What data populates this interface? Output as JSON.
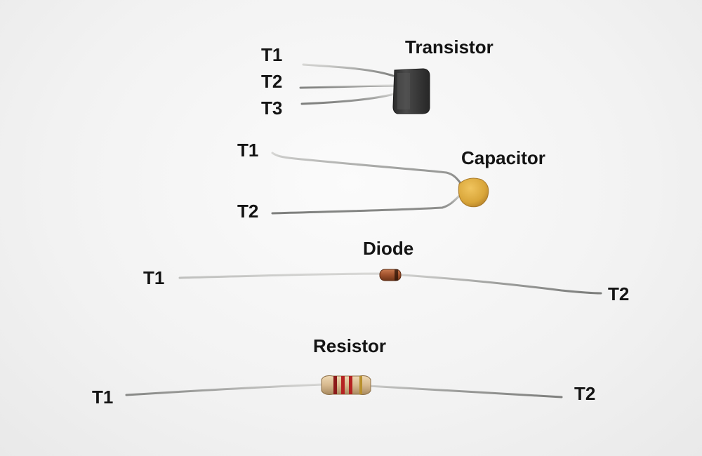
{
  "components": {
    "transistor": {
      "name": "Transistor",
      "terminals": [
        "T1",
        "T2",
        "T3"
      ]
    },
    "capacitor": {
      "name": "Capacitor",
      "terminals": [
        "T1",
        "T2"
      ]
    },
    "diode": {
      "name": "Diode",
      "terminals": [
        "T1",
        "T2"
      ]
    },
    "resistor": {
      "name": "Resistor",
      "terminals": [
        "T1",
        "T2"
      ]
    }
  },
  "colors": {
    "background": "#f4f4f4",
    "lead_wire": "#a9aaa8",
    "transistor_body": "#3a3a3a",
    "capacitor_body": "#d9a63a",
    "diode_body": "#a0522d",
    "resistor_body": "#d7b98e",
    "label_text": "#141414"
  },
  "icons": {
    "transistor": "to92-transistor-photo",
    "capacitor": "ceramic-disc-capacitor-photo",
    "diode": "glass-diode-photo",
    "resistor": "carbon-film-resistor-photo"
  }
}
